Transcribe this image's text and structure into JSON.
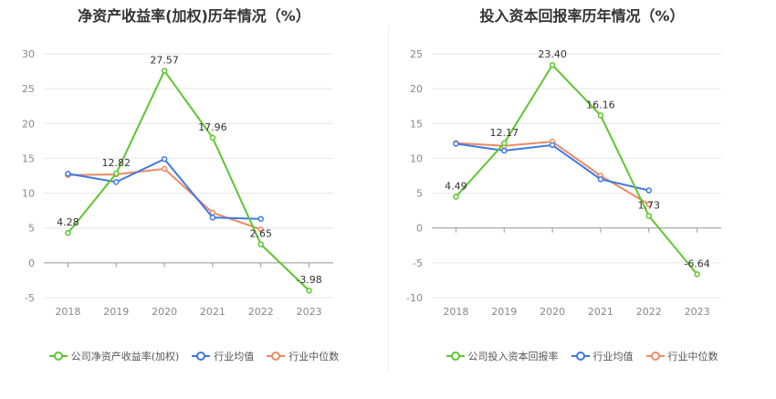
{
  "chart_data": [
    {
      "type": "line",
      "title": "净资产收益率(加权)历年情况（%）",
      "x": [
        "2018",
        "2019",
        "2020",
        "2021",
        "2022",
        "2023"
      ],
      "ylim": [
        -5,
        30
      ],
      "yticks": [
        -5,
        0,
        5,
        10,
        15,
        20,
        25,
        30
      ],
      "grid": true,
      "legend_position": "bottom",
      "series": [
        {
          "name": "公司净资产收益率(加权)",
          "color": "#5ec52f",
          "values": [
            4.28,
            12.82,
            27.57,
            17.96,
            2.65,
            -3.98
          ],
          "labels": [
            "4.28",
            "12.82",
            "27.57",
            "17.96",
            "2.65",
            "-3.98"
          ]
        },
        {
          "name": "行业均值",
          "color": "#3f78e0",
          "values": [
            12.8,
            11.6,
            14.9,
            6.5,
            6.3,
            null
          ]
        },
        {
          "name": "行业中位数",
          "color": "#ee8a63",
          "values": [
            12.6,
            12.7,
            13.5,
            7.2,
            4.8,
            null
          ]
        }
      ]
    },
    {
      "type": "line",
      "title": "投入资本回报率历年情况（%）",
      "x": [
        "2018",
        "2019",
        "2020",
        "2021",
        "2022",
        "2023"
      ],
      "ylim": [
        -10,
        25
      ],
      "yticks": [
        -10,
        -5,
        0,
        5,
        10,
        15,
        20,
        25
      ],
      "grid": true,
      "legend_position": "bottom",
      "series": [
        {
          "name": "公司投入资本回报率",
          "color": "#5ec52f",
          "values": [
            4.49,
            12.17,
            23.4,
            16.16,
            1.73,
            -6.64
          ],
          "labels": [
            "4.49",
            "12.17",
            "23.40",
            "16.16",
            "1.73",
            "-6.64"
          ]
        },
        {
          "name": "行业均值",
          "color": "#3f78e0",
          "values": [
            12.1,
            11.1,
            11.9,
            7.0,
            5.4,
            null
          ]
        },
        {
          "name": "行业中位数",
          "color": "#ee8a63",
          "values": [
            12.2,
            11.8,
            12.4,
            7.5,
            3.4,
            null
          ]
        }
      ]
    }
  ]
}
